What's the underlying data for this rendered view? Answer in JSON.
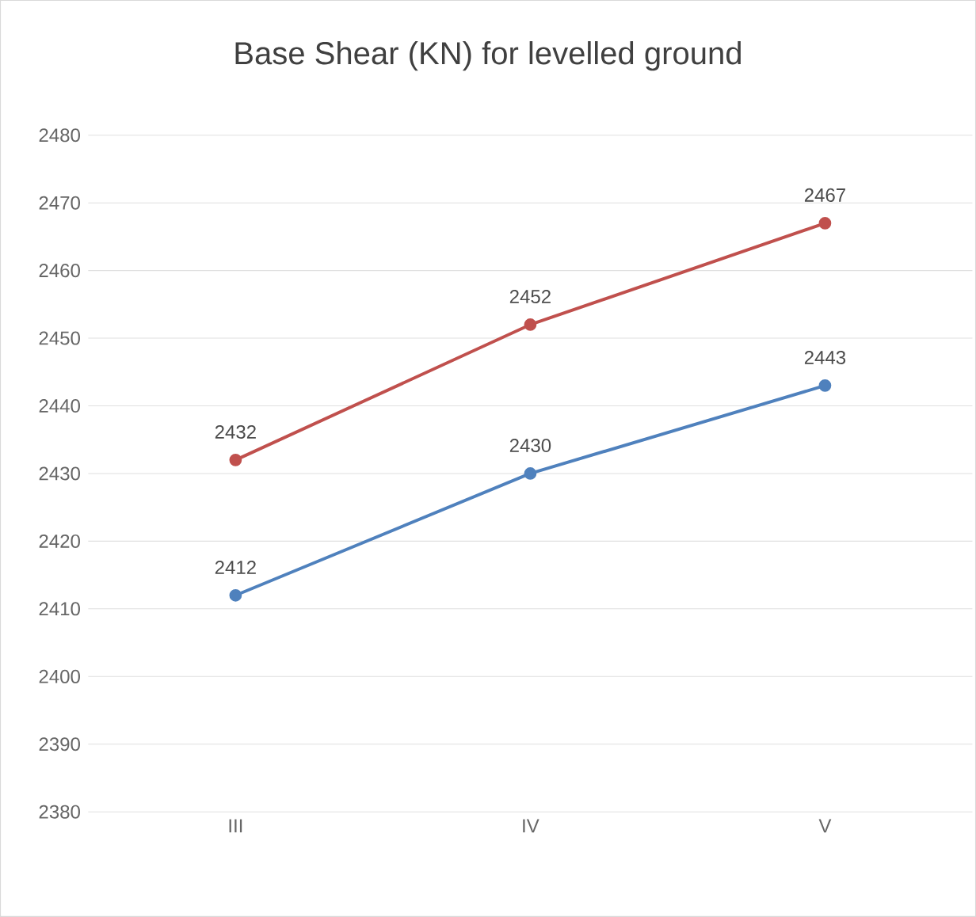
{
  "chart_data": {
    "type": "line",
    "title": "Base Shear (KN) for levelled ground",
    "categories": [
      "III",
      "IV",
      "V"
    ],
    "series": [
      {
        "color": "#4f81bd",
        "values": [
          2412,
          2430,
          2443
        ]
      },
      {
        "color": "#c0504d",
        "values": [
          2432,
          2452,
          2467
        ]
      }
    ],
    "ylim": [
      2380,
      2480
    ],
    "yticks": [
      2380,
      2390,
      2400,
      2410,
      2420,
      2430,
      2440,
      2450,
      2460,
      2470,
      2480
    ],
    "grid": "y",
    "marker": "circle",
    "data_labels": true
  }
}
